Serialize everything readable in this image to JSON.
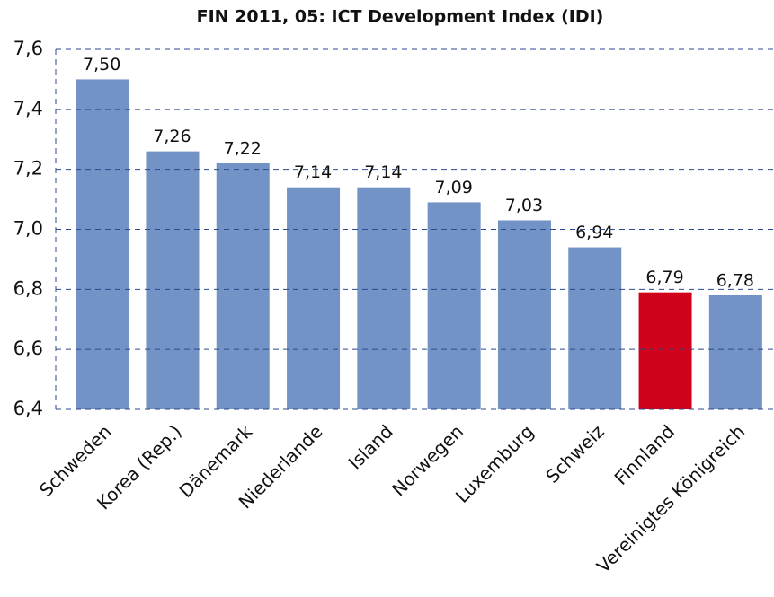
{
  "chart_data": {
    "type": "bar",
    "title": "FIN 2011, 05: ICT Development Index (IDI)",
    "categories": [
      "Schweden",
      "Korea (Rep.)",
      "Dänemark",
      "Niederlande",
      "Island",
      "Norwegen",
      "Luxemburg",
      "Schweiz",
      "Finnland",
      "Vereinigtes Königreich"
    ],
    "values": [
      7.5,
      7.26,
      7.22,
      7.14,
      7.14,
      7.09,
      7.03,
      6.94,
      6.79,
      6.78
    ],
    "value_labels": [
      "7,50",
      "7,26",
      "7,22",
      "7,14",
      "7,14",
      "7,09",
      "7,03",
      "6,94",
      "6,79",
      "6,78"
    ],
    "colors": [
      "#7393c6",
      "#7393c6",
      "#7393c6",
      "#7393c6",
      "#7393c6",
      "#7393c6",
      "#7393c6",
      "#7393c6",
      "#d0021b",
      "#7393c6"
    ],
    "ylim": [
      6.4,
      7.6
    ],
    "yticks": [
      {
        "value": 6.4,
        "label": "6,4"
      },
      {
        "value": 6.6,
        "label": "6,6"
      },
      {
        "value": 6.8,
        "label": "6,8"
      },
      {
        "value": 7.0,
        "label": "7,0"
      },
      {
        "value": 7.2,
        "label": "7,2"
      },
      {
        "value": 7.4,
        "label": "7,4"
      },
      {
        "value": 7.6,
        "label": "7,6"
      }
    ],
    "grid": true
  }
}
